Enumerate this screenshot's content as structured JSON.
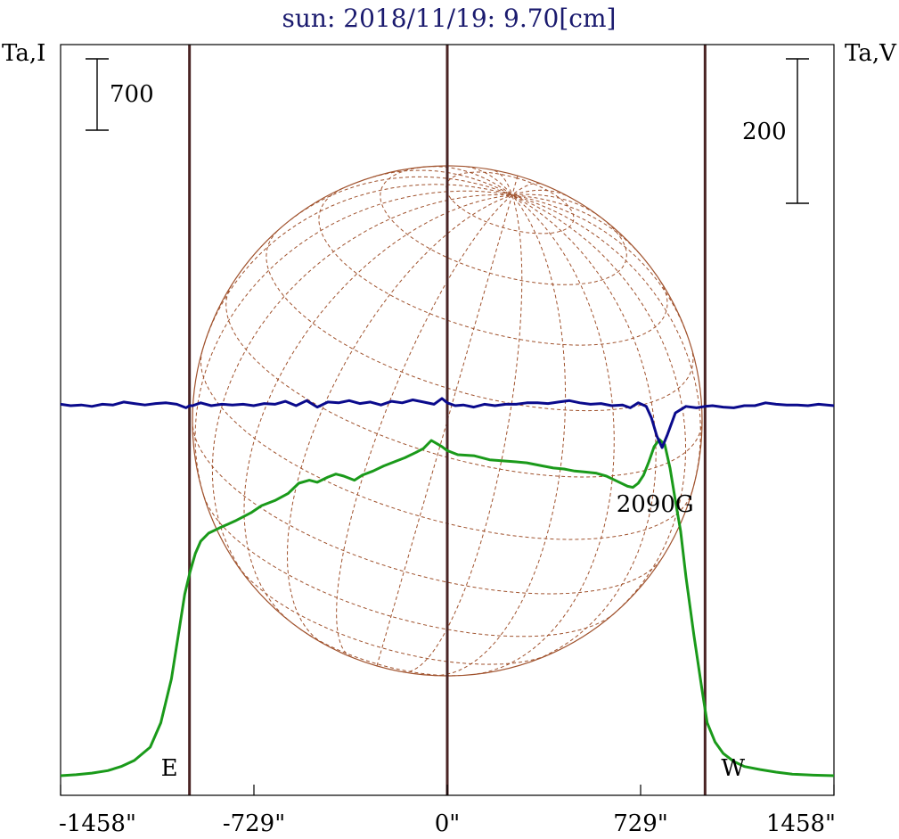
{
  "title": "sun: 2018/11/19: 9.70[cm]",
  "colors": {
    "title": "#1a1a6e",
    "intensity": "#1a9a1a",
    "polarization": "#0a0a8c",
    "disk": "#a0522d",
    "limb_lines": "#4a2424",
    "frame": "#000000"
  },
  "chart_data": {
    "type": "line",
    "title": "sun: 2018/11/19: 9.70[cm]",
    "xlabel": "",
    "x_ticks": [
      "-1458\"",
      "-729\"",
      "0\"",
      "729\"",
      "1458\""
    ],
    "x_tick_values": [
      -1458,
      -729,
      0,
      729,
      1458
    ],
    "xlim": [
      -1458,
      1458
    ],
    "left_axis_label": "Ta,I",
    "right_axis_label": "Ta,V",
    "left_scale_bar": "700",
    "right_scale_bar": "200",
    "limb_marks": [
      {
        "label": "E",
        "x": -972
      },
      {
        "label": "W",
        "x": 972
      }
    ],
    "center_mark": 0,
    "annotation": {
      "text": "2090G",
      "x": 790
    },
    "series": [
      {
        "name": "I",
        "axis": "left",
        "x": [
          -1458,
          -1400,
          -1340,
          -1280,
          -1230,
          -1180,
          -1120,
          -1080,
          -1040,
          -1010,
          -990,
          -970,
          -950,
          -930,
          -900,
          -860,
          -800,
          -740,
          -700,
          -650,
          -600,
          -560,
          -520,
          -490,
          -450,
          -420,
          -390,
          -350,
          -320,
          -280,
          -240,
          -200,
          -160,
          -120,
          -90,
          -60,
          -40,
          -20,
          0,
          40,
          100,
          160,
          210,
          260,
          300,
          360,
          400,
          440,
          480,
          520,
          560,
          600,
          640,
          680,
          700,
          720,
          740,
          760,
          780,
          800,
          820,
          840,
          860,
          880,
          900,
          930,
          960,
          980,
          1010,
          1040,
          1080,
          1120,
          1180,
          1240,
          1300,
          1380,
          1458
        ],
        "y": [
          0,
          10,
          25,
          50,
          90,
          150,
          280,
          520,
          950,
          1450,
          1780,
          2000,
          2180,
          2300,
          2380,
          2430,
          2500,
          2580,
          2650,
          2700,
          2770,
          2870,
          2900,
          2880,
          2930,
          2960,
          2940,
          2900,
          2950,
          2990,
          3040,
          3080,
          3120,
          3170,
          3210,
          3290,
          3260,
          3230,
          3190,
          3150,
          3140,
          3100,
          3090,
          3080,
          3070,
          3040,
          3020,
          3010,
          2990,
          2980,
          2970,
          2940,
          2890,
          2840,
          2830,
          2870,
          2950,
          3080,
          3230,
          3300,
          3250,
          3020,
          2700,
          2400,
          1950,
          1380,
          850,
          520,
          330,
          220,
          140,
          90,
          60,
          35,
          15,
          5,
          0
        ]
      },
      {
        "name": "V",
        "axis": "right",
        "x": [
          -1458,
          -1420,
          -1380,
          -1340,
          -1300,
          -1260,
          -1220,
          -1180,
          -1140,
          -1100,
          -1060,
          -1020,
          -985,
          -972,
          -960,
          -930,
          -890,
          -850,
          -810,
          -770,
          -730,
          -690,
          -650,
          -610,
          -570,
          -530,
          -490,
          -450,
          -410,
          -370,
          -330,
          -290,
          -250,
          -210,
          -170,
          -130,
          -90,
          -50,
          -20,
          0,
          30,
          60,
          100,
          140,
          180,
          220,
          260,
          300,
          340,
          380,
          420,
          460,
          500,
          540,
          580,
          620,
          660,
          690,
          720,
          750,
          770,
          790,
          810,
          830,
          860,
          900,
          940,
          972,
          1000,
          1040,
          1080,
          1120,
          1160,
          1200,
          1240,
          1280,
          1320,
          1360,
          1400,
          1458
        ],
        "y": [
          2,
          0,
          1,
          -1,
          2,
          1,
          5,
          3,
          1,
          3,
          4,
          2,
          -3,
          0,
          0,
          4,
          0,
          2,
          1,
          2,
          0,
          3,
          2,
          6,
          0,
          7,
          -2,
          5,
          4,
          7,
          3,
          5,
          1,
          6,
          4,
          8,
          5,
          2,
          10,
          4,
          0,
          1,
          -2,
          2,
          0,
          2,
          2,
          4,
          4,
          3,
          5,
          7,
          4,
          2,
          3,
          0,
          1,
          -3,
          4,
          -1,
          -17,
          -42,
          -58,
          -40,
          -10,
          -1,
          -3,
          -1,
          0,
          -2,
          -3,
          0,
          0,
          4,
          2,
          1,
          1,
          0,
          2,
          0
        ]
      }
    ]
  }
}
